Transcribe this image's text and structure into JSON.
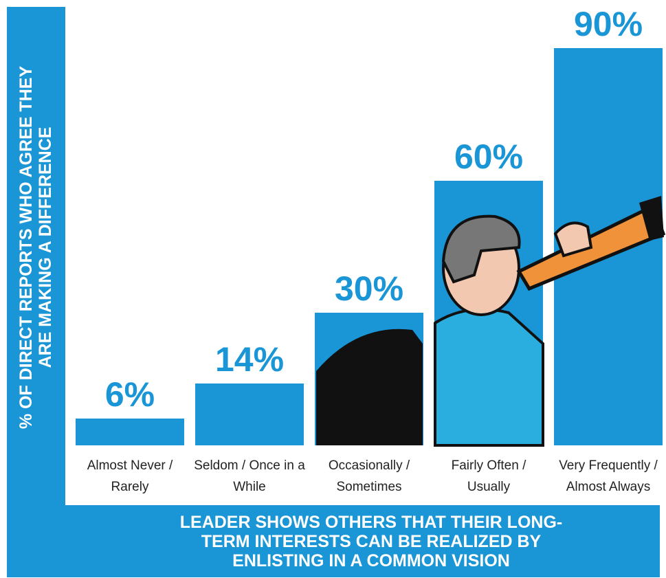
{
  "chart_data": {
    "type": "bar",
    "y_axis_label": "% OF DIRECT REPORTS WHO AGREE THEY ARE MAKING A DIFFERENCE",
    "x_axis_label": "LEADER SHOWS OTHERS THAT THEIR LONG-TERM INTERESTS CAN BE REALIZED BY ENLISTING IN A COMMON VISION",
    "categories": [
      "Almost Never / Rarely",
      "Seldom / Once in a While",
      "Occasionally / Sometimes",
      "Fairly Often / Usually",
      "Very Frequently / Almost Always"
    ],
    "values": [
      6,
      14,
      30,
      60,
      90
    ],
    "value_labels": [
      "6%",
      "14%",
      "30%",
      "60%",
      "90%"
    ],
    "color": "#1a96d6",
    "ylim": [
      0,
      100
    ]
  }
}
